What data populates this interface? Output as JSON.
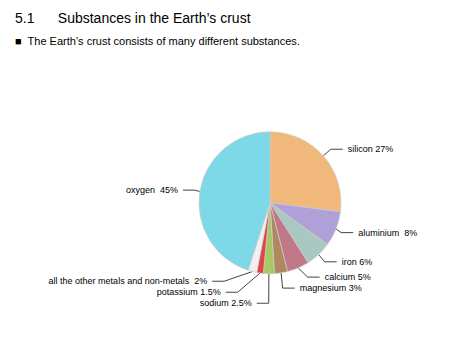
{
  "chart_data": {
    "type": "pie",
    "title": "5.1      Substances in the Earth’s crust",
    "subtitle": "■  The Earth’s crust consists of many different substances.",
    "categories": [
      "silicon 27%",
      "aluminium  8%",
      "iron 6%",
      "calcium 5%",
      "magnesium 3%",
      "sodium 2.5%",
      "potassium 1.5%",
      "all the other metals and non-metals  2%",
      "oxygen  45%"
    ],
    "values": [
      27,
      8,
      6,
      5,
      3,
      2.5,
      1.5,
      2,
      45
    ],
    "colors": [
      "#f0b87a",
      "#b0a0d8",
      "#a8c8c0",
      "#c07888",
      "#b08860",
      "#a8c868",
      "#e04444",
      "#f0f0f0",
      "#7dd8e8"
    ]
  }
}
